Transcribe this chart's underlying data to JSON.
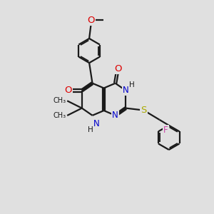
{
  "bg_color": "#e0e0e0",
  "bond_color": "#1a1a1a",
  "bond_width": 1.6,
  "dbo": 0.06,
  "atom_colors": {
    "O": "#dd0000",
    "N": "#0000cc",
    "S": "#aaaa00",
    "F": "#cc44aa",
    "C": "#1a1a1a",
    "H": "#1a1a1a"
  },
  "font_size": 8.5
}
